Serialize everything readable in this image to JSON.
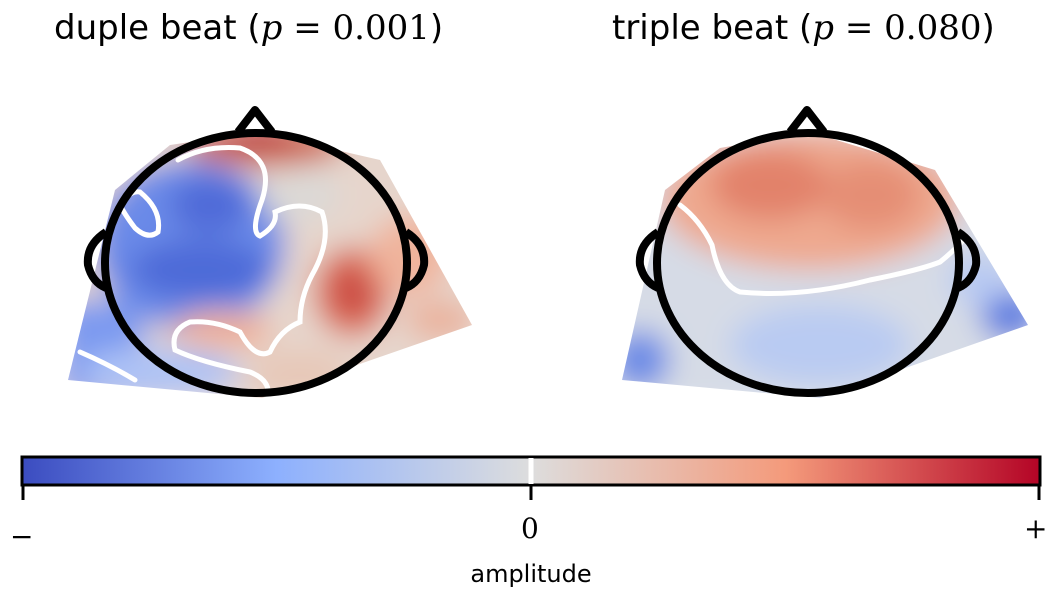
{
  "chart_data": {
    "type": "heatmap",
    "panels": [
      {
        "title_prefix": "duple beat (",
        "p_symbol": "p",
        "p_relation": " = ",
        "p_value": "0.001",
        "title_suffix": ")",
        "head_outline": "scalp-topomap",
        "zero_contour": true
      },
      {
        "title_prefix": "triple beat (",
        "p_symbol": "p",
        "p_relation": " = ",
        "p_value": "0.080",
        "title_suffix": ")",
        "head_outline": "scalp-topomap",
        "zero_contour": true
      }
    ],
    "colorbar": {
      "colormap": "coolwarm",
      "colors": [
        "#3b4cc0",
        "#8db0fe",
        "#dddddd",
        "#f49a7b",
        "#b40426"
      ],
      "tick_labels": [
        "−",
        "0",
        "+"
      ],
      "label": "amplitude",
      "zero_marker": true
    }
  }
}
